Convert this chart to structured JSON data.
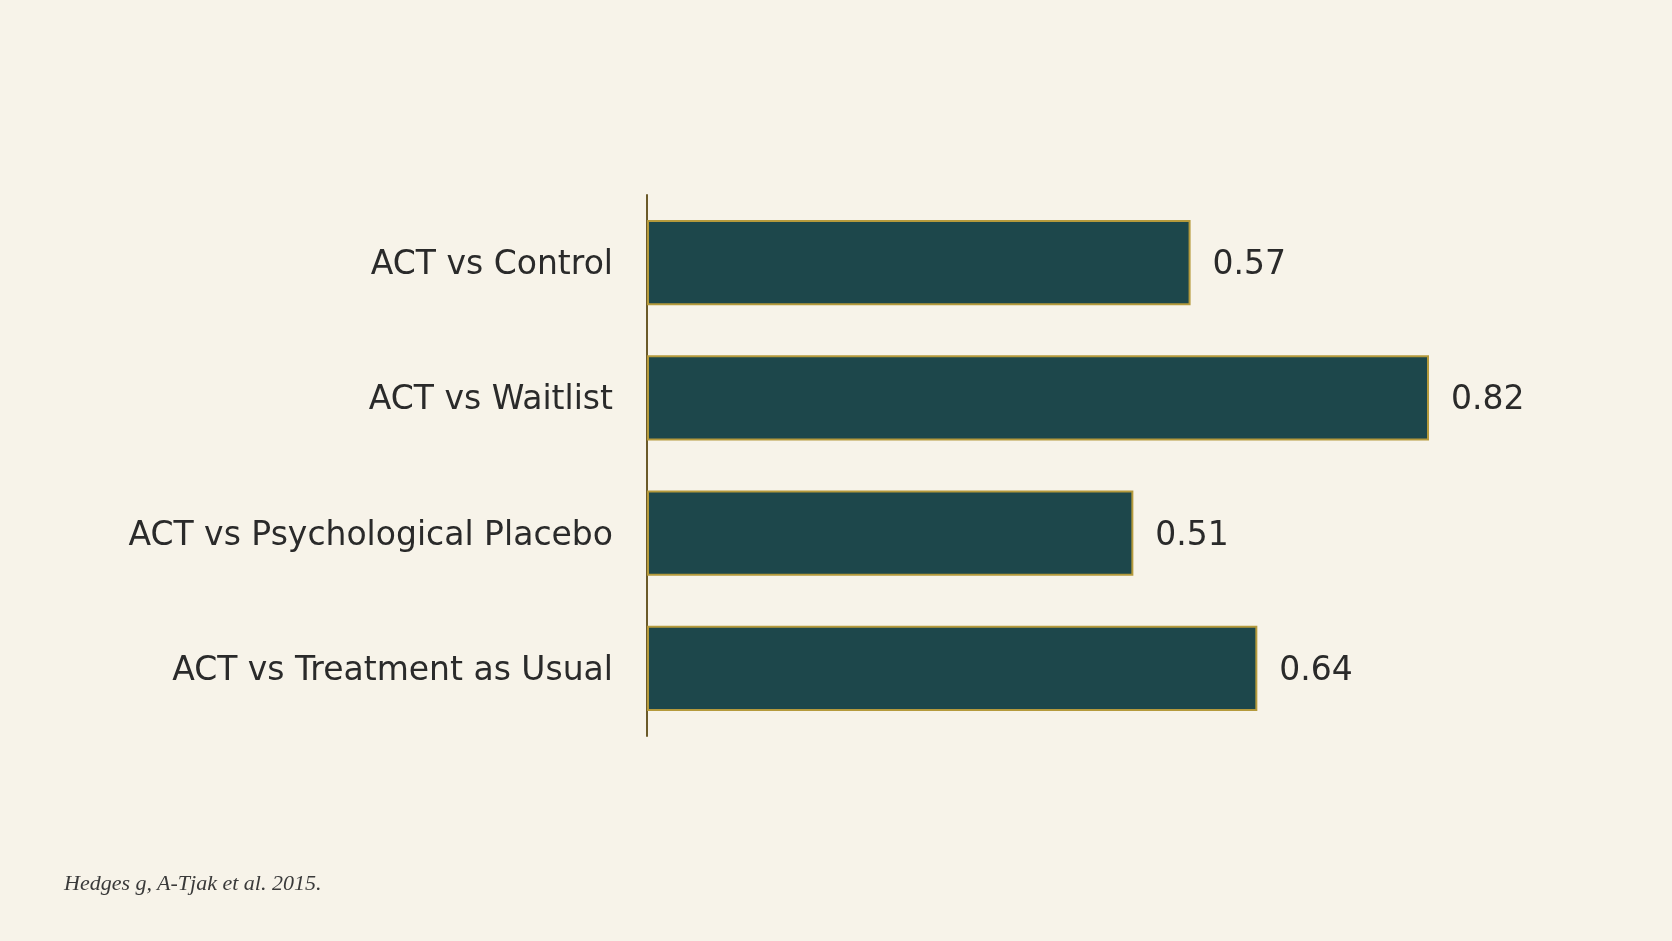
{
  "chart_data": {
    "type": "bar",
    "orientation": "horizontal",
    "categories": [
      "ACT vs Control",
      "ACT vs Waitlist",
      "ACT vs Psychological Placebo",
      "ACT vs Treatment as Usual"
    ],
    "values": [
      0.57,
      0.82,
      0.51,
      0.64
    ],
    "color": "#1d474b",
    "data_labels": true,
    "annotations": [
      "Hedges g, A-Tjak et al. 2015."
    ]
  }
}
